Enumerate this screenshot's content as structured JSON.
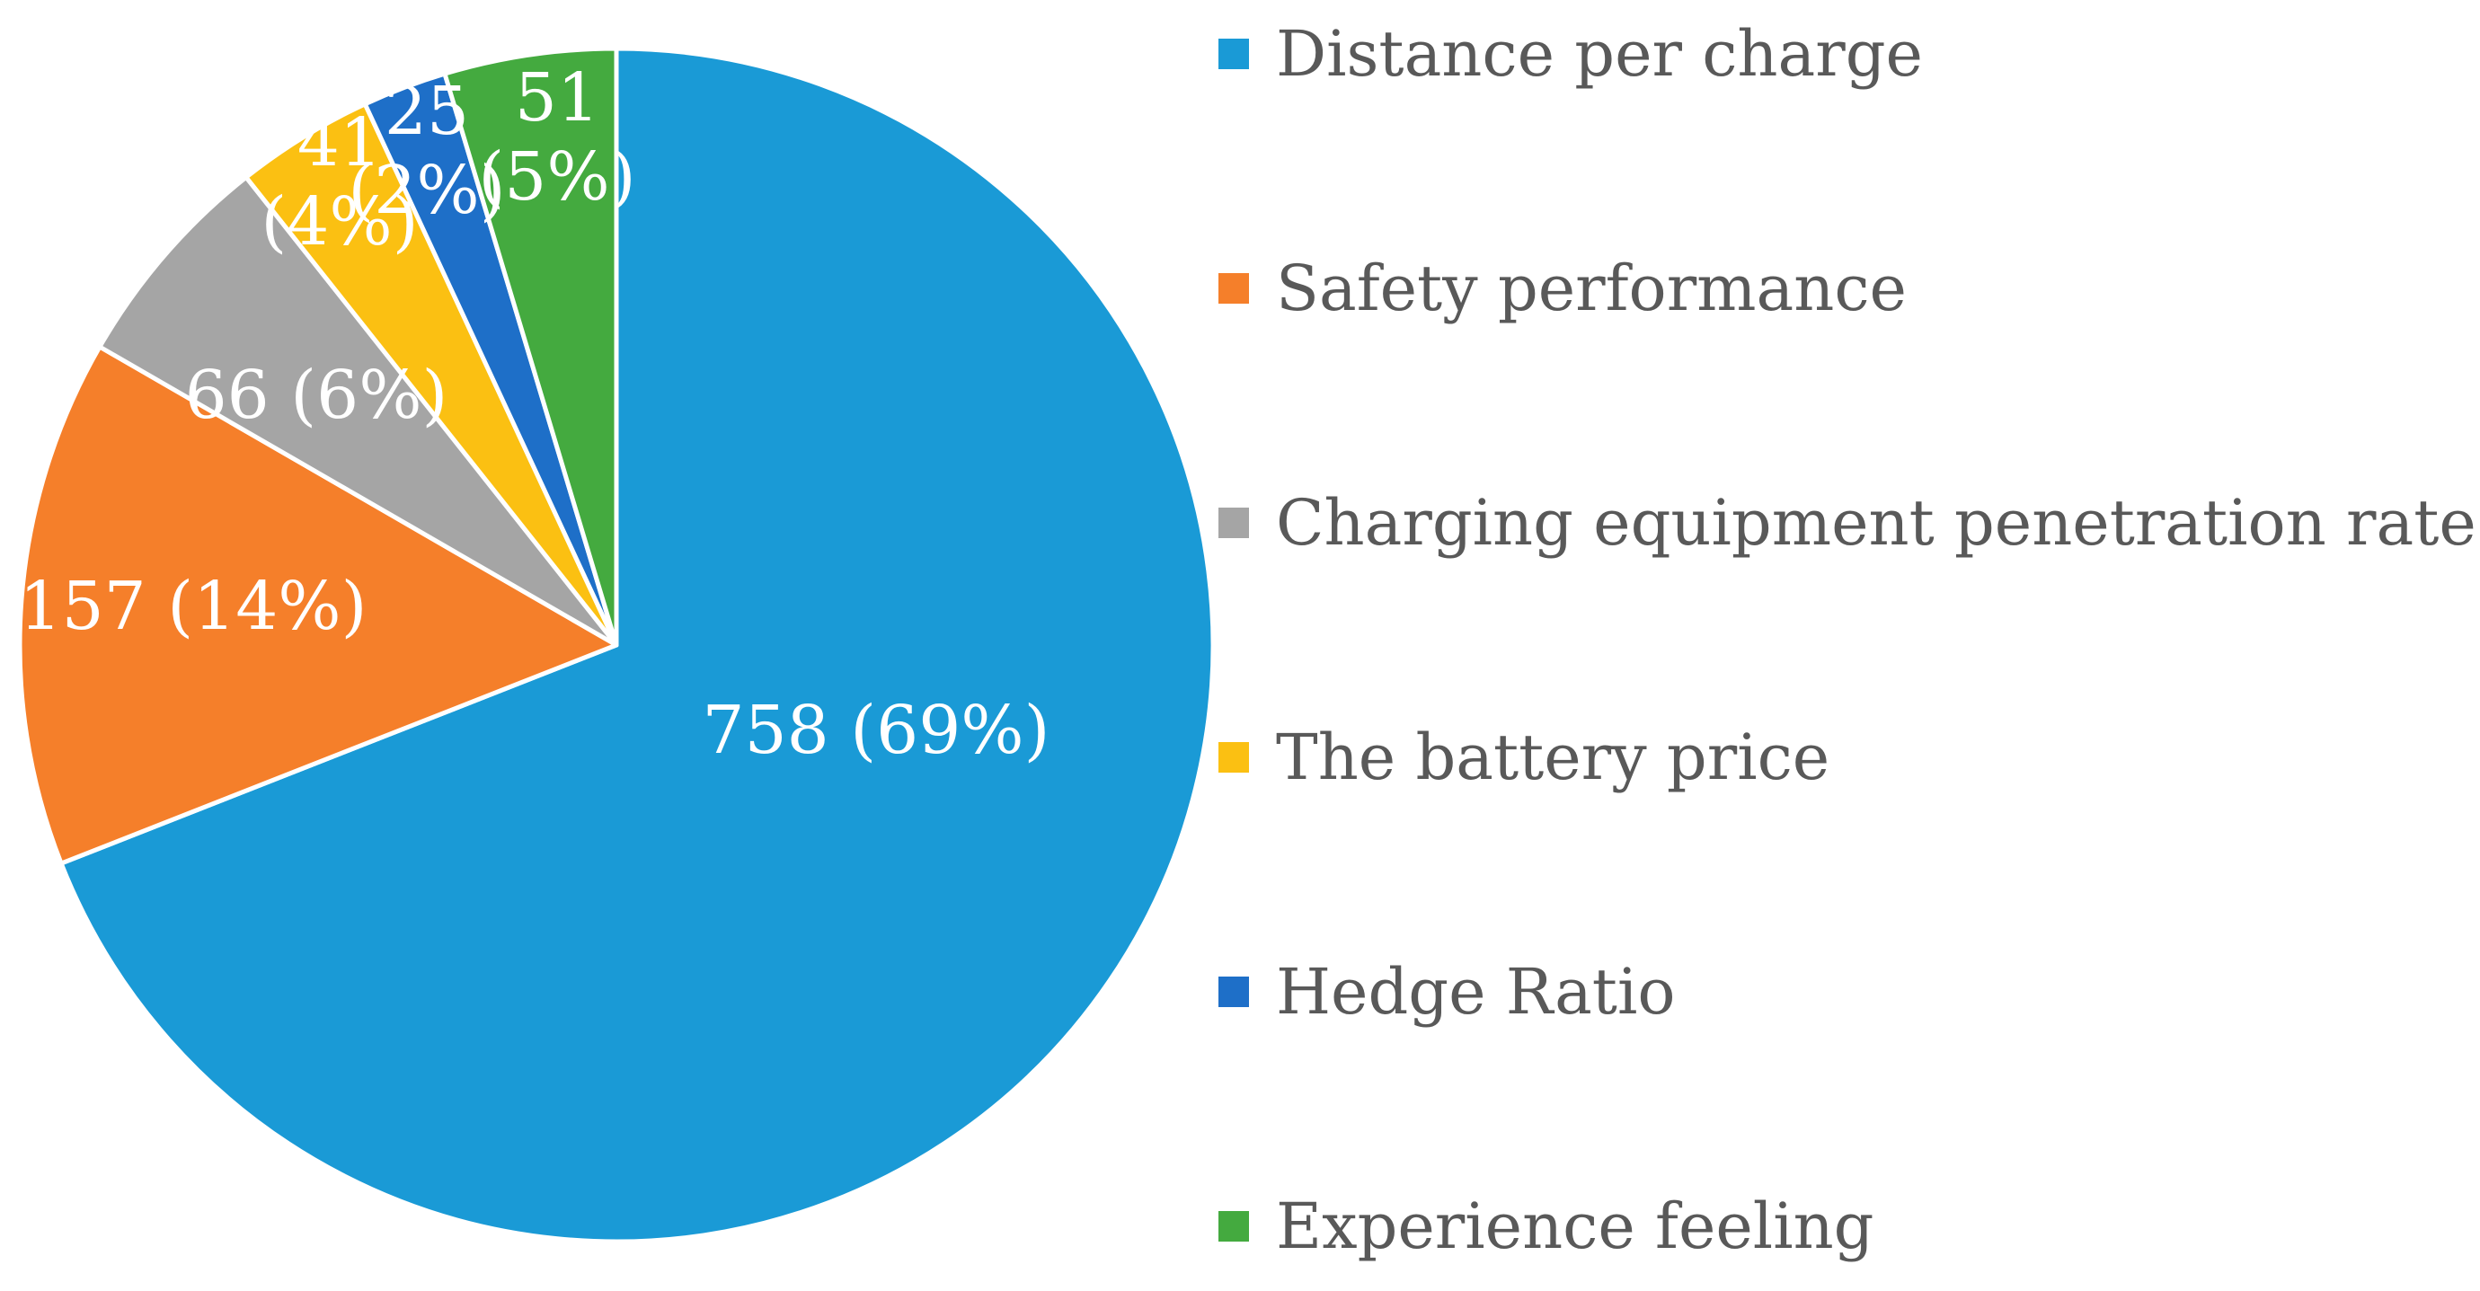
{
  "chart_data": {
    "type": "pie",
    "title": "",
    "legend_position": "right",
    "start_angle_deg": 0,
    "direction": "clockwise",
    "slices": [
      {
        "label": "Distance per charge",
        "value": 758,
        "percent_label": "(69%)",
        "color": "#1A9AD6"
      },
      {
        "label": "Safety performance",
        "value": 157,
        "percent_label": "(14%)",
        "color": "#F57F2A"
      },
      {
        "label": "Charging equipment penetration rate",
        "value": 66,
        "percent_label": "(6%)",
        "color": "#A5A5A5"
      },
      {
        "label": "The battery price",
        "value": 41,
        "percent_label": "(4%)",
        "color": "#FBC012"
      },
      {
        "label": "Hedge Ratio",
        "value": 25,
        "percent_label": "(2%)",
        "color": "#1E6FC8"
      },
      {
        "label": "Experience feeling",
        "value": 51,
        "percent_label": "(5%)",
        "color": "#44AA3F"
      }
    ]
  }
}
